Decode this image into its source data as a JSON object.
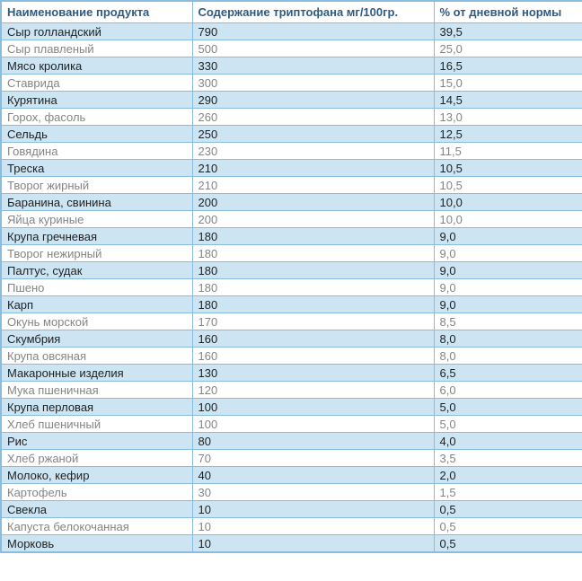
{
  "colors": {
    "border": "#8ABCDF",
    "alt_row_bg": "#CDE5F3",
    "header_text": "#2E5B7F",
    "alt_row_text": "#1F1F1F",
    "plain_row_text": "#858585"
  },
  "table": {
    "columns": [
      "Наименование продукта",
      "Содержание триптофана мг/100гр.",
      "% от дневной нормы"
    ],
    "rows": [
      [
        "Сыр голландский",
        "790",
        "39,5"
      ],
      [
        "Сыр плавленый",
        "500",
        "25,0"
      ],
      [
        "Мясо кролика",
        "330",
        "16,5"
      ],
      [
        "Ставрида",
        "300",
        "15,0"
      ],
      [
        "Курятина",
        "290",
        "14,5"
      ],
      [
        "Горох, фасоль",
        "260",
        "13,0"
      ],
      [
        "Сельдь",
        "250",
        "12,5"
      ],
      [
        "Говядина",
        "230",
        "11,5"
      ],
      [
        "Треска",
        "210",
        "10,5"
      ],
      [
        "Творог жирный",
        "210",
        "10,5"
      ],
      [
        "Баранина, свинина",
        "200",
        "10,0"
      ],
      [
        "Яйца куриные",
        "200",
        "10,0"
      ],
      [
        "Крупа гречневая",
        "180",
        "9,0"
      ],
      [
        "Творог нежирный",
        "180",
        "9,0"
      ],
      [
        "Палтус, судак",
        "180",
        "9,0"
      ],
      [
        "Пшено",
        "180",
        "9,0"
      ],
      [
        "Карп",
        "180",
        "9,0"
      ],
      [
        "Окунь морской",
        "170",
        "8,5"
      ],
      [
        "Скумбрия",
        "160",
        "8,0"
      ],
      [
        "Крупа овсяная",
        "160",
        "8,0"
      ],
      [
        "Макаронные изделия",
        "130",
        "6,5"
      ],
      [
        "Мука пшеничная",
        "120",
        "6,0"
      ],
      [
        "Крупа перловая",
        "100",
        "5,0"
      ],
      [
        "Хлеб пшеничный",
        "100",
        "5,0"
      ],
      [
        "Рис",
        "80",
        "4,0"
      ],
      [
        "Хлеб ржаной",
        "70",
        "3,5"
      ],
      [
        "Молоко, кефир",
        "40",
        "2,0"
      ],
      [
        "Картофель",
        "30",
        "1,5"
      ],
      [
        "Свекла",
        "10",
        "0,5"
      ],
      [
        "Капуста белокочанная",
        "10",
        "0,5"
      ],
      [
        "Морковь",
        "10",
        "0,5"
      ]
    ]
  },
  "chart_data": {
    "type": "table",
    "title": "",
    "columns": [
      "Наименование продукта",
      "Содержание триптофана мг/100гр.",
      "% от дневной нормы"
    ],
    "categories": [
      "Сыр голландский",
      "Сыр плавленый",
      "Мясо кролика",
      "Ставрида",
      "Курятина",
      "Горох, фасоль",
      "Сельдь",
      "Говядина",
      "Треска",
      "Творог жирный",
      "Баранина, свинина",
      "Яйца куриные",
      "Крупа гречневая",
      "Творог нежирный",
      "Палтус, судак",
      "Пшено",
      "Карп",
      "Окунь морской",
      "Скумбрия",
      "Крупа овсяная",
      "Макаронные изделия",
      "Мука пшеничная",
      "Крупа перловая",
      "Хлеб пшеничный",
      "Рис",
      "Хлеб ржаной",
      "Молоко, кефир",
      "Картофель",
      "Свекла",
      "Капуста белокочанная",
      "Морковь"
    ],
    "series": [
      {
        "name": "Содержание триптофана мг/100гр.",
        "values": [
          790,
          500,
          330,
          300,
          290,
          260,
          250,
          230,
          210,
          210,
          200,
          200,
          180,
          180,
          180,
          180,
          180,
          170,
          160,
          160,
          130,
          120,
          100,
          100,
          80,
          70,
          40,
          30,
          10,
          10,
          10
        ]
      },
      {
        "name": "% от дневной нормы",
        "values": [
          39.5,
          25.0,
          16.5,
          15.0,
          14.5,
          13.0,
          12.5,
          11.5,
          10.5,
          10.5,
          10.0,
          10.0,
          9.0,
          9.0,
          9.0,
          9.0,
          9.0,
          8.5,
          8.0,
          8.0,
          6.5,
          6.0,
          5.0,
          5.0,
          4.0,
          3.5,
          2.0,
          1.5,
          0.5,
          0.5,
          0.5
        ]
      }
    ]
  }
}
